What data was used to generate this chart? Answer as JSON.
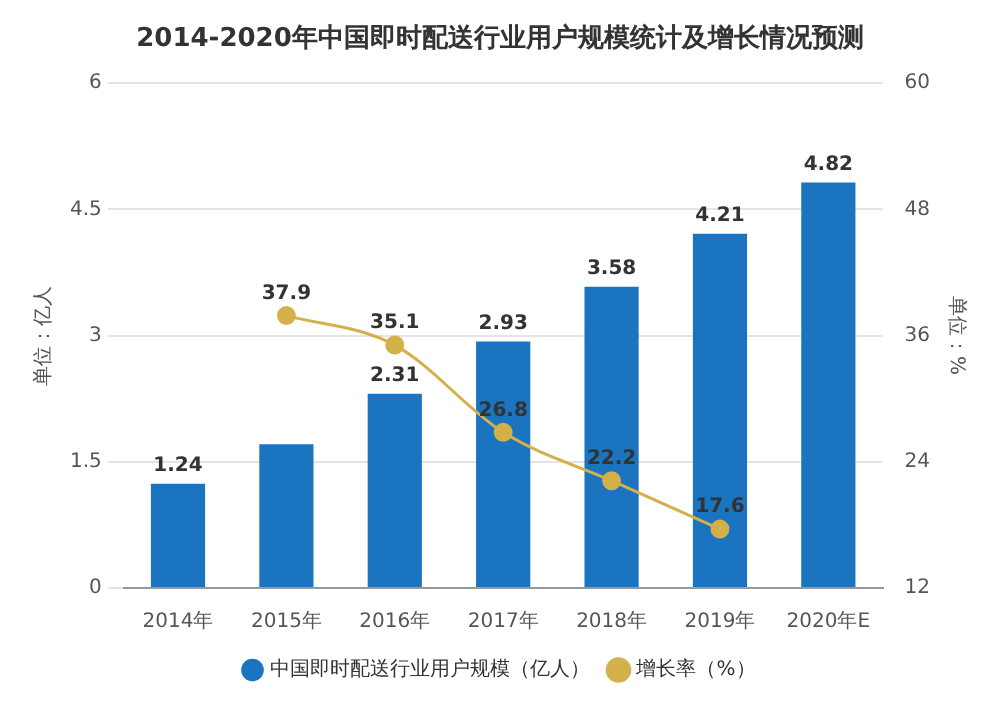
{
  "chart_data": {
    "type": "bar",
    "title": "2014-2020年中国即时配送行业用户规模统计及增长情况预测",
    "categories": [
      "2014年",
      "2015年",
      "2016年",
      "2017年",
      "2018年",
      "2019年",
      "2020年E"
    ],
    "series": [
      {
        "name": "中国即时配送行业用户规模（亿人）",
        "color": "#1a74c0",
        "values": [
          1.24,
          1.71,
          2.31,
          2.93,
          3.58,
          4.21,
          4.82
        ],
        "value_labels": [
          "1.24",
          null,
          "2.31",
          "2.93",
          "3.58",
          "4.21",
          "4.82"
        ]
      },
      {
        "name": "增长率（%）",
        "type": "line",
        "axis": "y2",
        "color": "#d4b04a",
        "marker": "circle",
        "values": [
          null,
          37.9,
          35.1,
          26.8,
          22.2,
          17.6,
          null
        ],
        "value_labels": [
          null,
          "37.9",
          "35.1",
          "26.8",
          "22.2",
          "17.6",
          null
        ]
      }
    ],
    "ylabel": "单位：亿人",
    "y2label": "单位：%",
    "ylim": [
      0,
      6
    ],
    "yticks": [
      0,
      1.5,
      3,
      4.5,
      6
    ],
    "y2lim": [
      12,
      60
    ],
    "y2ticks": [
      12,
      24,
      36,
      48,
      60
    ],
    "grid": "y",
    "legend": "bottom"
  }
}
